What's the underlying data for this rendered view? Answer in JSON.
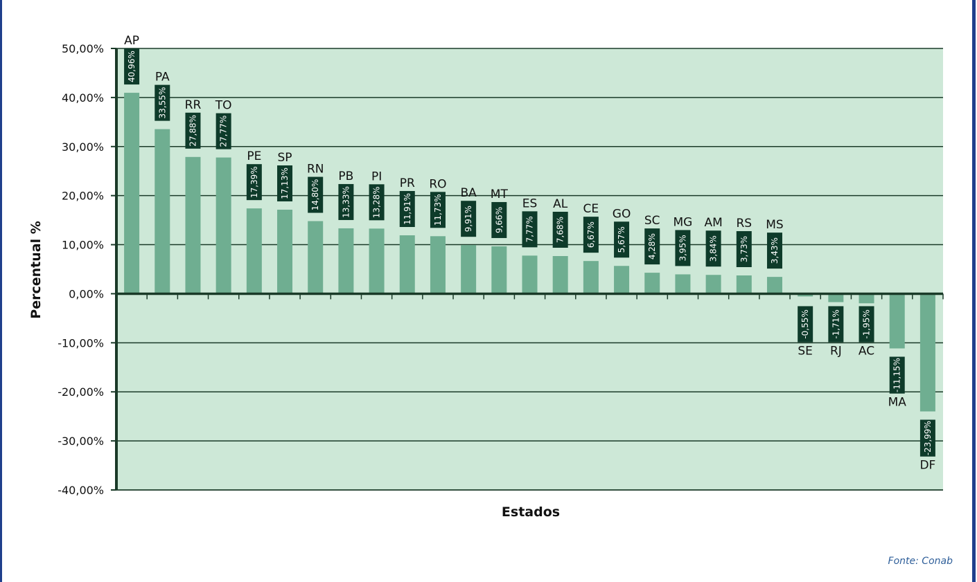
{
  "chart_data": {
    "type": "bar",
    "xlabel": "Estados",
    "ylabel": "Percentual %",
    "ylim": [
      -40,
      50
    ],
    "y_ticks": [
      "50,00%",
      "40,00%",
      "30,00%",
      "20,00%",
      "10,00%",
      "0,00%",
      "-10,00%",
      "-20,00%",
      "-30,00%",
      "-40,00%"
    ],
    "y_tick_values": [
      50,
      40,
      30,
      20,
      10,
      0,
      -10,
      -20,
      -30,
      -40
    ],
    "grid": true,
    "categories": [
      "AP",
      "PA",
      "RR",
      "TO",
      "PE",
      "SP",
      "RN",
      "PB",
      "PI",
      "PR",
      "RO",
      "BA",
      "MT",
      "ES",
      "AL",
      "CE",
      "GO",
      "SC",
      "MG",
      "AM",
      "RS",
      "MS",
      "SE",
      "RJ",
      "AC",
      "MA",
      "DF"
    ],
    "values": [
      40.96,
      33.55,
      27.88,
      27.77,
      17.39,
      17.13,
      14.8,
      13.33,
      13.28,
      11.91,
      11.73,
      9.91,
      9.66,
      7.77,
      7.68,
      6.67,
      5.67,
      4.28,
      3.95,
      3.84,
      3.73,
      3.43,
      -0.55,
      -1.71,
      -1.95,
      -11.15,
      -23.99
    ],
    "value_labels": [
      "40,96%",
      "33,55%",
      "27,88%",
      "27,77%",
      "17,39%",
      "17,13%",
      "14,80%",
      "13,33%",
      "13,28%",
      "11,91%",
      "11,73%",
      "9,91%",
      "9,66%",
      "7,77%",
      "7,68%",
      "6,67%",
      "5,67%",
      "4,28%",
      "3,95%",
      "3,84%",
      "3,73%",
      "3,43%",
      "-0,55%",
      "-1,71%",
      "-1,95%",
      "-11,15%",
      "-23,99%"
    ],
    "colors": {
      "plot_background": "#cde8d7",
      "bar": "#6fae91",
      "label_box": "#0e3b2a",
      "axis": "#1a3a28",
      "gridline": "#1a3a28",
      "frame": "#1f3f8c"
    }
  },
  "source": "Fonte: Conab"
}
